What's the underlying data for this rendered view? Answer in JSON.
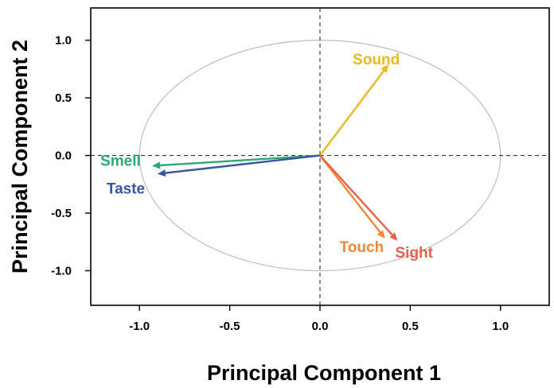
{
  "chart_data": {
    "type": "biplot",
    "xlabel": "Principal Component 1",
    "ylabel": "Principal Component 2",
    "xlim": [
      -1.27,
      1.27
    ],
    "ylim": [
      -1.3,
      1.28
    ],
    "xticks": [
      -1.0,
      -0.5,
      0.0,
      0.5,
      1.0
    ],
    "yticks": [
      -1.0,
      -0.5,
      0.0,
      0.5,
      1.0
    ],
    "xtick_labels": [
      "-1.0",
      "-0.5",
      "0.0",
      "0.5",
      "1.0"
    ],
    "ytick_labels": [
      "-1.0",
      "-0.5",
      "0.0",
      "0.5",
      "1.0"
    ],
    "circle_radius": 1.0,
    "reference_lines": {
      "x": 0,
      "y": 0,
      "style": "dashed"
    },
    "grid": false,
    "vectors": [
      {
        "name": "Sound",
        "x": 0.38,
        "y": 0.79,
        "color": "#E8B923"
      },
      {
        "name": "Smell",
        "x": -0.93,
        "y": -0.09,
        "color": "#2EA872"
      },
      {
        "name": "Taste",
        "x": -0.9,
        "y": -0.16,
        "color": "#3A54A4"
      },
      {
        "name": "Touch",
        "x": 0.36,
        "y": -0.72,
        "color": "#F0883A"
      },
      {
        "name": "Sight",
        "x": 0.43,
        "y": -0.74,
        "color": "#E8604C"
      }
    ]
  }
}
